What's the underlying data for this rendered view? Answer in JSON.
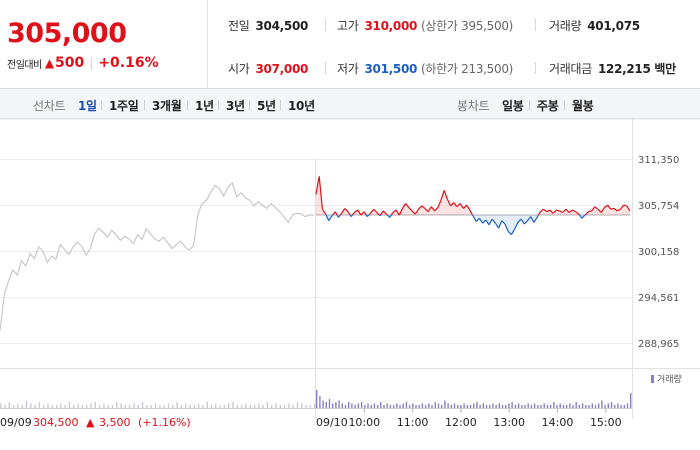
{
  "header": {
    "price": "305,000",
    "change_label": "전일대비",
    "change_arrow": "▲",
    "change_amount": "500",
    "change_sep": "|",
    "change_rate": "+0.16%",
    "stats": {
      "prev_close": {
        "label": "전일",
        "value": "304,500"
      },
      "high": {
        "label": "고가",
        "value": "310,000",
        "sub": "(상한가 395,500)"
      },
      "volume": {
        "label": "거래량",
        "value": "401,075"
      },
      "open": {
        "label": "시가",
        "value": "307,000"
      },
      "low": {
        "label": "저가",
        "value": "301,500",
        "sub": "(하한가 213,500)"
      },
      "amount": {
        "label": "거래대금",
        "value": "122,215 백만"
      }
    }
  },
  "controls": {
    "line_label": "선차트",
    "line_items": [
      "1일",
      "1주일",
      "3개월",
      "1년",
      "3년",
      "5년",
      "10년"
    ],
    "active_index": 0,
    "candle_label": "봉차트",
    "candle_items": [
      "일봉",
      "주봉",
      "월봉"
    ]
  },
  "colors": {
    "up": "#e0101a",
    "down": "#1a5fc7",
    "prev_day_line": "#c8c8c8",
    "volume_bar": "#8a7fc2"
  },
  "chart_data": {
    "type": "line",
    "ylim": [
      286000,
      313500
    ],
    "y_ticks": [
      "311,350",
      "305,754",
      "300,158",
      "294,561",
      "288,965"
    ],
    "y_tick_values": [
      311350,
      305754,
      300158,
      294561,
      288965
    ],
    "baseline": 304500,
    "prev_day": {
      "label": "09/09",
      "info_close": "304,500",
      "info_arrow": "▲",
      "info_change": "3,500",
      "info_rate": "(+1.16%)",
      "values": [
        290400,
        294800,
        296500,
        297800,
        297200,
        298900,
        298300,
        299800,
        299200,
        300600,
        300100,
        298700,
        299500,
        299100,
        300900,
        300300,
        299700,
        300600,
        301200,
        300700,
        299600,
        300400,
        302200,
        302900,
        302400,
        301800,
        302600,
        302100,
        301400,
        301900,
        301600,
        301000,
        302100,
        301500,
        302800,
        302200,
        301600,
        301300,
        301800,
        301100,
        300400,
        300900,
        301300,
        300600,
        300200,
        300800,
        304600,
        305900,
        306300,
        307300,
        308100,
        307700,
        306800,
        307900,
        308400,
        306700,
        307200,
        306600,
        306300,
        305600,
        306100,
        305700,
        305300,
        305900,
        305400,
        304900,
        304300,
        303600,
        304500,
        304700,
        304600,
        304300,
        304500,
        304500
      ]
    },
    "today": {
      "label": "09/10",
      "values": [
        307000,
        309200,
        305200,
        304600,
        303800,
        304400,
        304900,
        304200,
        304700,
        305300,
        304900,
        304300,
        304800,
        305100,
        304500,
        304900,
        304300,
        304700,
        305200,
        304800,
        304400,
        305000,
        304600,
        304200,
        304800,
        305100,
        304500,
        305300,
        305900,
        305400,
        305000,
        304600,
        305200,
        305600,
        305300,
        304900,
        305500,
        305000,
        305400,
        306300,
        307500,
        306400,
        305600,
        306000,
        305500,
        305900,
        305300,
        305700,
        305100,
        304400,
        303700,
        304100,
        303500,
        303900,
        303300,
        304000,
        303500,
        302900,
        303800,
        303400,
        302500,
        302100,
        302800,
        303600,
        304000,
        303400,
        303800,
        304300,
        303600,
        304200,
        304900,
        305200,
        304900,
        305100,
        304700,
        305100,
        305000,
        304800,
        305200,
        304800,
        305100,
        304900,
        304600,
        304100,
        304500,
        304900,
        305000,
        305500,
        305200,
        304800,
        305400,
        305700,
        305200,
        305300,
        305000,
        305200,
        305700,
        305600,
        305000
      ]
    },
    "time_ticks": [
      "10:00",
      "11:00",
      "12:00",
      "13:00",
      "14:00",
      "15:00"
    ],
    "volume_label": "거래량",
    "volume": {
      "prev_day": [
        3,
        2,
        4,
        2,
        3,
        2,
        5,
        3,
        2,
        4,
        2,
        3,
        2,
        2,
        3,
        2,
        4,
        2,
        3,
        2,
        2,
        3,
        4,
        2,
        3,
        2,
        2,
        4,
        3,
        2,
        2,
        3,
        2,
        4,
        2,
        2,
        3,
        2,
        2,
        3,
        2,
        4,
        2,
        3,
        2,
        2,
        3,
        2,
        4,
        2,
        3,
        2,
        2,
        3,
        4,
        2,
        2,
        3,
        2,
        2,
        3,
        2,
        4,
        2,
        3,
        2,
        2,
        3,
        2,
        4,
        3,
        2,
        2,
        3
      ],
      "today": [
        12,
        8,
        5,
        4,
        6,
        3,
        4,
        5,
        3,
        2,
        4,
        3,
        2,
        3,
        4,
        2,
        3,
        2,
        3,
        2,
        4,
        2,
        3,
        2,
        2,
        3,
        2,
        3,
        4,
        2,
        3,
        2,
        2,
        3,
        2,
        3,
        2,
        4,
        3,
        2,
        5,
        3,
        2,
        3,
        2,
        2,
        3,
        2,
        2,
        3,
        4,
        2,
        3,
        2,
        2,
        3,
        2,
        3,
        2,
        2,
        3,
        4,
        2,
        3,
        2,
        2,
        3,
        2,
        3,
        2,
        2,
        3,
        2,
        2,
        4,
        2,
        3,
        2,
        2,
        3,
        2,
        4,
        2,
        3,
        2,
        2,
        3,
        2,
        3,
        5,
        2,
        3,
        4,
        2,
        3,
        2,
        2,
        3,
        10
      ]
    }
  }
}
